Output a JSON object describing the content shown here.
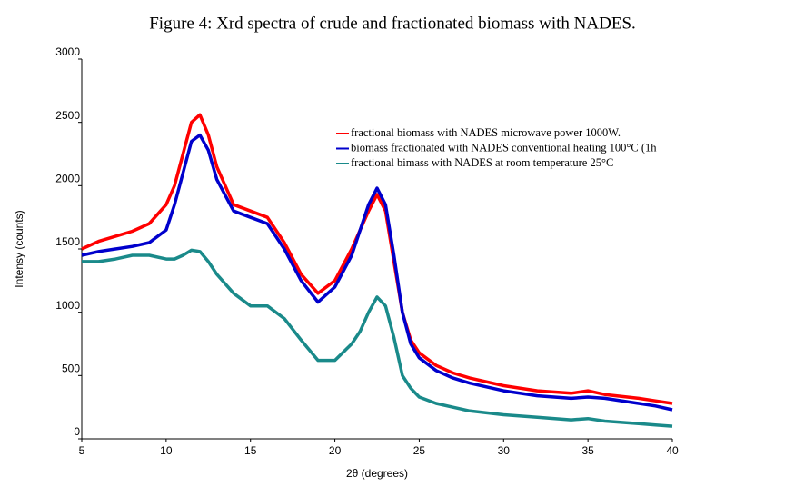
{
  "chart_data": {
    "type": "line",
    "title": "Figure 4: Xrd spectra of crude and fractionated biomass with NADES.",
    "x_label": "2θ (degrees)",
    "y_label": "Intensy (counts)",
    "x": [
      5,
      6,
      7,
      8,
      9,
      10,
      10.5,
      11,
      11.5,
      12,
      12.5,
      13,
      14,
      15,
      16,
      17,
      18,
      19,
      20,
      21,
      21.5,
      22,
      22.5,
      23,
      23.5,
      24,
      24.5,
      25,
      26,
      27,
      28,
      30,
      32,
      34,
      35,
      36,
      38,
      39,
      40
    ],
    "series": [
      {
        "name": "fractional biomass with NADES microwave power 1000W.",
        "color": "#ff0000",
        "values": [
          1500,
          1560,
          1600,
          1640,
          1700,
          1850,
          2000,
          2250,
          2500,
          2560,
          2400,
          2150,
          1850,
          1800,
          1750,
          1550,
          1300,
          1150,
          1250,
          1500,
          1650,
          1800,
          1930,
          1800,
          1400,
          1000,
          780,
          680,
          580,
          520,
          480,
          420,
          380,
          360,
          380,
          350,
          320,
          300,
          280
        ]
      },
      {
        "name": "biomass fractionated with NADES conventional heating 100°C (1h",
        "color": "#0000cc",
        "values": [
          1450,
          1480,
          1500,
          1520,
          1550,
          1650,
          1850,
          2100,
          2350,
          2400,
          2280,
          2050,
          1800,
          1750,
          1700,
          1500,
          1250,
          1080,
          1200,
          1450,
          1650,
          1850,
          1980,
          1850,
          1450,
          1000,
          750,
          640,
          540,
          480,
          440,
          380,
          340,
          320,
          330,
          320,
          280,
          260,
          230
        ]
      },
      {
        "name": "fractional bimass with NADES at room temperature 25°C",
        "color": "#1a8a8a",
        "values": [
          1400,
          1400,
          1420,
          1450,
          1450,
          1420,
          1420,
          1450,
          1490,
          1480,
          1400,
          1300,
          1150,
          1050,
          1050,
          950,
          780,
          620,
          620,
          750,
          850,
          1000,
          1120,
          1050,
          800,
          500,
          400,
          330,
          280,
          250,
          220,
          190,
          170,
          150,
          160,
          140,
          120,
          110,
          100
        ]
      }
    ],
    "xlim": [
      5,
      40
    ],
    "xticks": [
      5,
      10,
      15,
      20,
      25,
      30,
      35,
      40
    ],
    "ylim": [
      0,
      3000
    ],
    "yticks": [
      0,
      500,
      1000,
      1500,
      2000,
      2500,
      3000
    ],
    "grid": false,
    "legend": "upper right"
  }
}
